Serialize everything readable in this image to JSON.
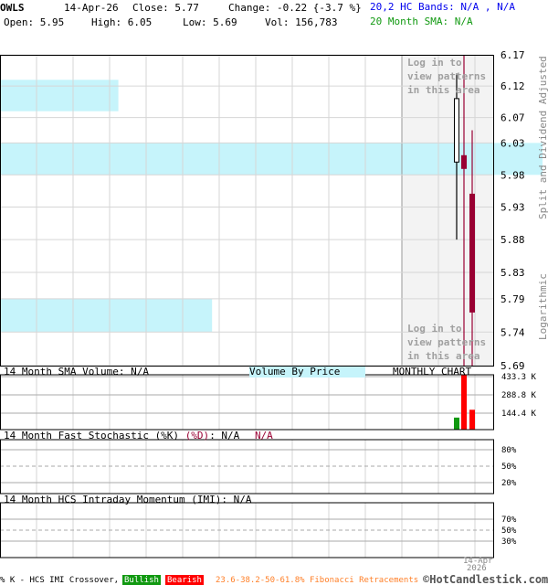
{
  "header": {
    "symbol": "OWLS",
    "date": "14-Apr-26",
    "close": "Close: 5.77",
    "change": "Change: -0.22 {-3.7 %}",
    "open": "Open: 5.95",
    "high": "High: 6.05",
    "low": "Low: 5.69",
    "vol": "Vol: 156,783",
    "hc_bands": "20,2 HC Bands: N/A , N/A",
    "sma": "20 Month SMA: N/A"
  },
  "side_labels": {
    "adjusted": "Split and Dividend Adjusted",
    "log": "Logarithmic"
  },
  "login_note": "Log in to\nview patterns\nin this area",
  "panels": {
    "volume_title": "14 Month SMA Volume: N/A",
    "vbp_label": "Volume By Price",
    "chart_type": "MONTHLY CHART",
    "stoch_title": "14 Month Fast Stochastic (%K)",
    "stoch_d": "(%D)",
    "stoch_k_val": ": N/A",
    "stoch_d_val": "N/A",
    "imi_title": "14 Month HCS Intraday Momentum (IMI): N/A",
    "date_label_1": "14-Apr",
    "date_label_2": "2026"
  },
  "footer": {
    "crossover": "% K - HCS IMI Crossover,",
    "bullish": "Bullish",
    "bearish": "Bearish",
    "fib": "23.6-38.2-50-61.8% Fibonacci Retracements",
    "brand": "©HotCandlestick.com"
  },
  "colors": {
    "bull": "#000000",
    "bear": "#990033",
    "vbp": "#c6f4fb",
    "vol_up": "#119911",
    "vol_down": "#ff0000",
    "login_area": "#f3f3f3"
  },
  "chart_data": {
    "type": "candlestick",
    "scale": "log",
    "ylim": [
      5.69,
      6.17
    ],
    "yticks": [
      "6.17",
      "6.12",
      "6.07",
      "6.03",
      "5.98",
      "5.93",
      "5.88",
      "5.83",
      "5.79",
      "5.74",
      "5.69"
    ],
    "candles": [
      {
        "open": 6.0,
        "high": 6.14,
        "low": 5.88,
        "close": 6.1,
        "direction": "up"
      },
      {
        "open": 6.01,
        "high": 6.2,
        "low": 5.66,
        "close": 5.99,
        "direction": "down"
      },
      {
        "open": 5.95,
        "high": 6.05,
        "low": 5.69,
        "close": 5.77,
        "direction": "down"
      }
    ],
    "volume": {
      "yticks": [
        "433.3 K",
        "288.8 K",
        "144.4 K"
      ],
      "ylim": [
        0,
        433300
      ],
      "values": [
        95000,
        433300,
        156783
      ],
      "colors": [
        "up",
        "down",
        "down"
      ]
    },
    "volume_by_price_bands": [
      [
        6.08,
        6.13
      ],
      [
        5.98,
        6.03
      ],
      [
        5.74,
        5.79
      ]
    ],
    "volume_by_price_extent": [
      0.24,
      1.1,
      0.43
    ],
    "stochastic": {
      "yticks": [
        "80%",
        "50%",
        "20%"
      ],
      "values": []
    },
    "imi": {
      "yticks": [
        "70%",
        "50%",
        "30%"
      ],
      "values": []
    }
  }
}
